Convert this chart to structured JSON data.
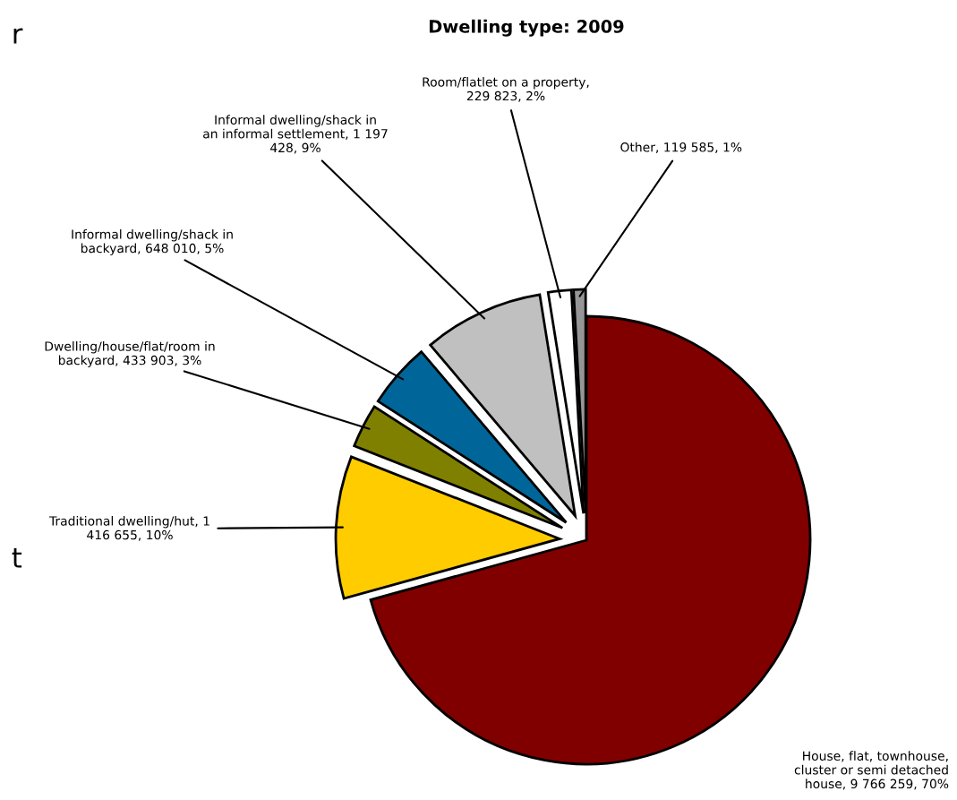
{
  "chart_data": {
    "type": "pie",
    "title": "Dwelling type: 2009",
    "categories": [
      "House, flat, townhouse,\ncluster or semi detached\nhouse, 9 766 259, 70%",
      "Traditional dwelling/hut, 1\n416 655, 10%",
      "Dwelling/house/flat/room in\nbackyard, 433 903, 3%",
      "Informal dwelling/shack in\nbackyard, 648 010, 5%",
      "Informal dwelling/shack in\nan informal settlement, 1 197\n428, 9%",
      "Room/flatlet on a property,\n229 823, 2%",
      "Other, 119 585, 1%"
    ],
    "values": [
      9766259,
      1416655,
      433903,
      648010,
      1197428,
      229823,
      119585
    ],
    "colors": [
      "#800000",
      "#ffcc00",
      "#808000",
      "#006699",
      "#c0c0c0",
      "#ffffff",
      "#969696"
    ],
    "annotations": [
      "r",
      "t"
    ]
  }
}
